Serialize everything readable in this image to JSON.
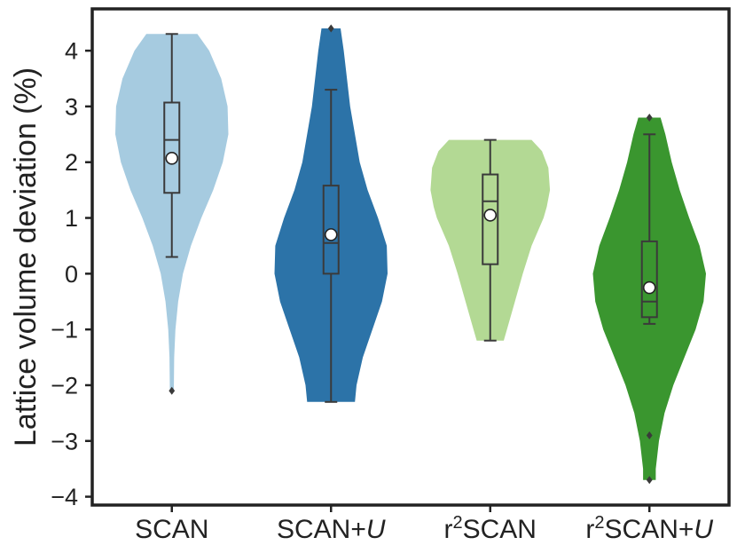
{
  "chart_data": {
    "type": "violin",
    "ylabel": "Lattice volume deviation (%)",
    "ylim": [
      -4.15,
      4.75
    ],
    "yticks": [
      {
        "value": 4,
        "label": "4"
      },
      {
        "value": 3,
        "label": "3"
      },
      {
        "value": 2,
        "label": "2"
      },
      {
        "value": 1,
        "label": "1"
      },
      {
        "value": 0,
        "label": "0"
      },
      {
        "value": -1,
        "label": "−1"
      },
      {
        "value": -2,
        "label": "−2"
      },
      {
        "value": -3,
        "label": "−3"
      },
      {
        "value": -4,
        "label": "−4"
      }
    ],
    "categories": [
      {
        "prefix": "SCAN",
        "sup": "",
        "main": "",
        "italic": ""
      },
      {
        "prefix": "SCAN+",
        "sup": "",
        "main": "",
        "italic": "U"
      },
      {
        "prefix": "r",
        "sup": "2",
        "main": "SCAN",
        "italic": ""
      },
      {
        "prefix": "r",
        "sup": "2",
        "main": "SCAN+",
        "italic": "U"
      }
    ],
    "grid": false,
    "series": [
      {
        "color": "#a6cbe0",
        "min": 0.3,
        "q1": 1.45,
        "median": 2.4,
        "q3": 3.07,
        "max": 4.3,
        "mean": 2.07,
        "outliers": [
          -2.1
        ],
        "violin": {
          "top": 4.3,
          "bottom": -2.08,
          "profile": [
            [
              4.3,
              0.32
            ],
            [
              4.0,
              0.47
            ],
            [
              3.5,
              0.62
            ],
            [
              3.0,
              0.7
            ],
            [
              2.5,
              0.71
            ],
            [
              2.0,
              0.64
            ],
            [
              1.5,
              0.52
            ],
            [
              1.0,
              0.37
            ],
            [
              0.5,
              0.24
            ],
            [
              0.0,
              0.14
            ],
            [
              -0.5,
              0.08
            ],
            [
              -1.0,
              0.045
            ],
            [
              -1.5,
              0.03
            ],
            [
              -2.08,
              0.025
            ]
          ]
        }
      },
      {
        "color": "#2c73a8",
        "min": -2.3,
        "q1": 0.0,
        "median": 0.55,
        "q3": 1.58,
        "max": 3.3,
        "mean": 0.7,
        "outliers": [
          4.4
        ],
        "violin": {
          "top": 4.4,
          "bottom": -2.3,
          "profile": [
            [
              4.4,
              0.12
            ],
            [
              4.0,
              0.16
            ],
            [
              3.0,
              0.24
            ],
            [
              2.0,
              0.36
            ],
            [
              1.5,
              0.46
            ],
            [
              1.0,
              0.59
            ],
            [
              0.5,
              0.7
            ],
            [
              0.0,
              0.71
            ],
            [
              -0.5,
              0.64
            ],
            [
              -1.0,
              0.52
            ],
            [
              -1.5,
              0.4
            ],
            [
              -2.0,
              0.32
            ],
            [
              -2.3,
              0.3
            ]
          ]
        }
      },
      {
        "color": "#b3d994",
        "min": -1.2,
        "q1": 0.17,
        "median": 1.3,
        "q3": 1.78,
        "max": 2.4,
        "mean": 1.05,
        "outliers": [],
        "violin": {
          "top": 2.4,
          "bottom": -1.2,
          "profile": [
            [
              2.4,
              0.52
            ],
            [
              2.2,
              0.65
            ],
            [
              1.9,
              0.73
            ],
            [
              1.5,
              0.75
            ],
            [
              1.2,
              0.71
            ],
            [
              1.0,
              0.67
            ],
            [
              0.5,
              0.52
            ],
            [
              0.0,
              0.41
            ],
            [
              -0.5,
              0.31
            ],
            [
              -1.0,
              0.21
            ],
            [
              -1.2,
              0.17
            ]
          ]
        }
      },
      {
        "color": "#3a962f",
        "min": -0.9,
        "q1": -0.78,
        "median": -0.5,
        "q3": 0.58,
        "max": 2.5,
        "mean": -0.25,
        "outliers": [
          2.8,
          -2.9,
          -3.7
        ],
        "violin": {
          "top": 2.8,
          "bottom": -3.7,
          "profile": [
            [
              2.8,
              0.14
            ],
            [
              2.5,
              0.2
            ],
            [
              2.0,
              0.28
            ],
            [
              1.5,
              0.38
            ],
            [
              1.0,
              0.5
            ],
            [
              0.5,
              0.63
            ],
            [
              0.0,
              0.71
            ],
            [
              -0.5,
              0.68
            ],
            [
              -1.0,
              0.58
            ],
            [
              -1.5,
              0.44
            ],
            [
              -2.0,
              0.3
            ],
            [
              -2.5,
              0.19
            ],
            [
              -3.0,
              0.12
            ],
            [
              -3.5,
              0.08
            ],
            [
              -3.7,
              0.08
            ]
          ]
        }
      }
    ]
  }
}
